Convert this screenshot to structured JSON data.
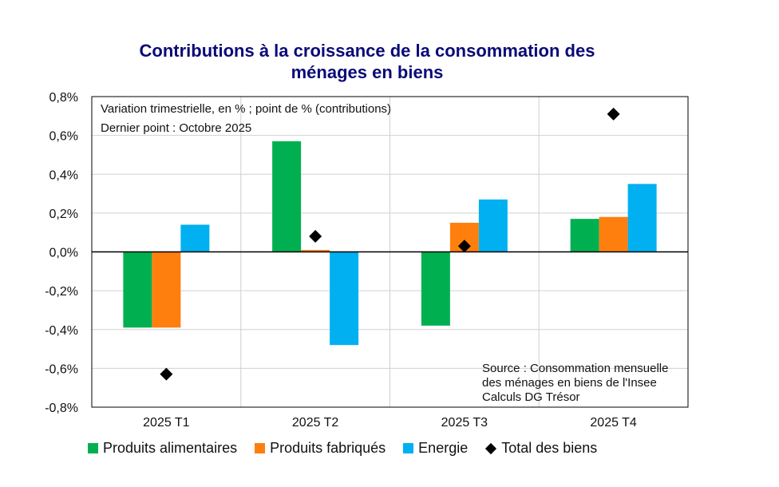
{
  "chart_data": {
    "type": "bar",
    "title_lines": [
      "Contributions à la croissance de la consommation des",
      "ménages en biens"
    ],
    "categories": [
      "2025 T1",
      "2025 T2",
      "2025 T3",
      "2025 T4"
    ],
    "series": [
      {
        "name": "Produits alimentaires",
        "color": "#00b050",
        "values": [
          -0.39,
          0.57,
          -0.38,
          0.17
        ]
      },
      {
        "name": "Produits fabriqués",
        "color": "#ff7f0e",
        "values": [
          -0.39,
          0.01,
          0.15,
          0.18
        ]
      },
      {
        "name": "Energie",
        "color": "#00b0f0",
        "values": [
          0.14,
          -0.48,
          0.27,
          0.35
        ]
      }
    ],
    "total": {
      "name": "Total des biens",
      "color": "#000000",
      "values": [
        -0.63,
        0.08,
        0.03,
        0.71
      ]
    },
    "ylim": [
      -0.8,
      0.8
    ],
    "yticks": [
      0.8,
      0.6,
      0.4,
      0.2,
      0.0,
      -0.2,
      -0.4,
      -0.6,
      -0.8
    ],
    "ytick_labels": [
      "0,8%",
      "0,6%",
      "0,4%",
      "0,2%",
      "0,0%",
      "-0,2%",
      "-0,4%",
      "-0,6%",
      "-0,8%"
    ],
    "notes_top": [
      "Variation trimestrielle, en % ; point de % (contributions)",
      "Dernier point : Octobre 2025"
    ],
    "source_lines": [
      "Source : Consommation mensuelle",
      "des ménages en biens de l'Insee",
      "Calculs DG Trésor"
    ],
    "legend_position": "bottom"
  }
}
